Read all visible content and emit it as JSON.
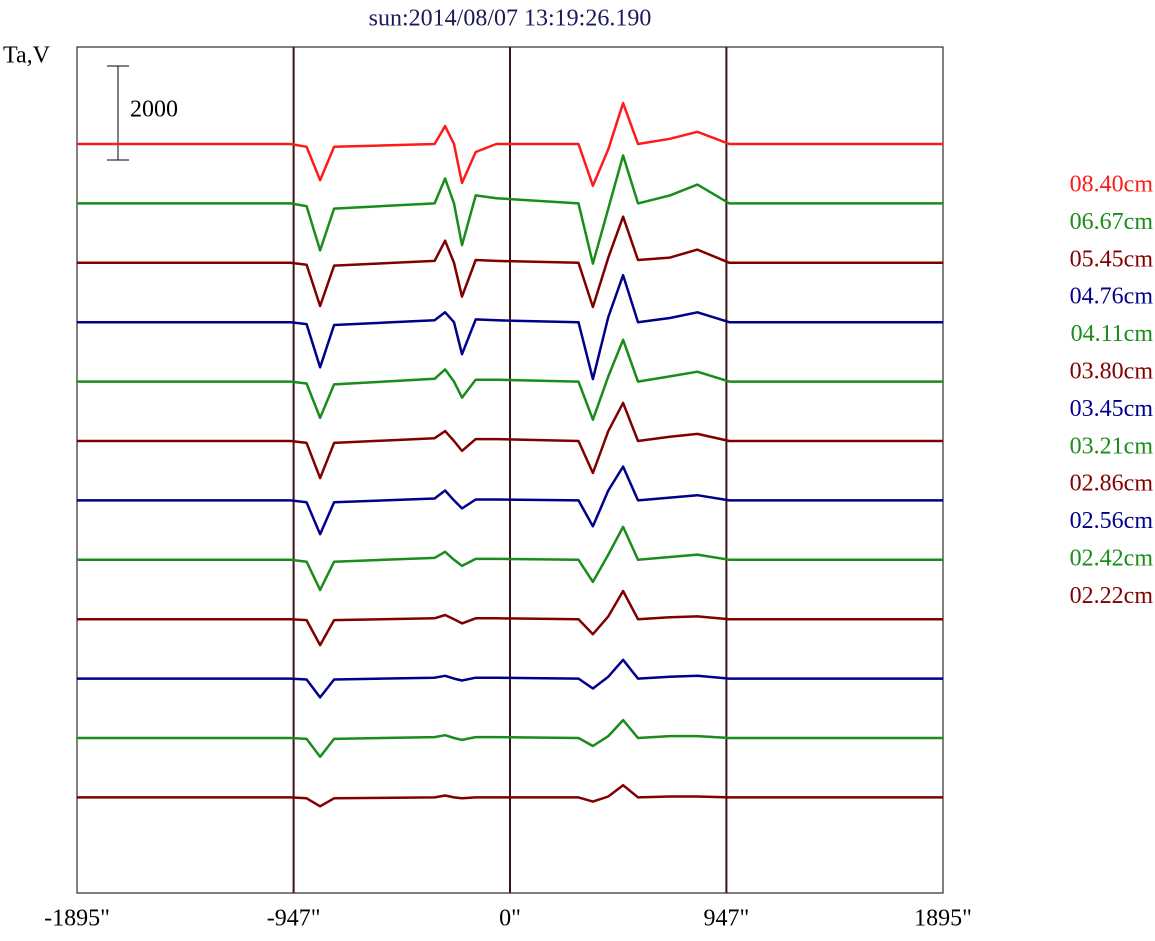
{
  "chart_data": {
    "type": "line",
    "title": "sun:2014/08/07 13:19:26.190",
    "y_label": "Ta,V",
    "scale_bar": 2000,
    "xlim": [
      -1895,
      1895
    ],
    "xticks": [
      {
        "value": -1895,
        "label": "-1895\""
      },
      {
        "value": -947,
        "label": "-947\""
      },
      {
        "value": 0,
        "label": "0\""
      },
      {
        "value": 947,
        "label": "947\""
      },
      {
        "value": 1895,
        "label": "1895\""
      }
    ],
    "grid": true,
    "x": [
      -1895,
      -960,
      -890,
      -831,
      -770,
      -330,
      -284,
      -245,
      -210,
      -150,
      -60,
      300,
      363,
      430,
      495,
      560,
      700,
      820,
      960,
      1895
    ],
    "series": [
      {
        "name": "08.40cm",
        "color": "#ff1a1a",
        "values": [
          0,
          0,
          -60,
          -770,
          -60,
          0,
          380,
          0,
          -830,
          -170,
          0,
          0,
          -890,
          -110,
          870,
          0,
          110,
          260,
          0,
          0
        ]
      },
      {
        "name": "06.67cm",
        "color": "#1a8c1a",
        "values": [
          0,
          0,
          -60,
          -1000,
          -110,
          0,
          530,
          0,
          -890,
          170,
          110,
          0,
          -1280,
          -110,
          1020,
          0,
          170,
          400,
          0,
          0
        ]
      },
      {
        "name": "05.45cm",
        "color": "#800000",
        "values": [
          0,
          0,
          -40,
          -920,
          -60,
          40,
          470,
          0,
          -720,
          60,
          40,
          0,
          -940,
          110,
          980,
          60,
          110,
          280,
          0,
          0
        ]
      },
      {
        "name": "04.76cm",
        "color": "#00008b",
        "values": [
          0,
          0,
          -40,
          -960,
          -60,
          40,
          210,
          0,
          -680,
          60,
          40,
          0,
          -1210,
          110,
          1000,
          0,
          90,
          210,
          0,
          0
        ]
      },
      {
        "name": "04.11cm",
        "color": "#1a8c1a",
        "values": [
          0,
          0,
          -40,
          -770,
          -60,
          60,
          260,
          0,
          -340,
          40,
          40,
          0,
          -810,
          110,
          890,
          0,
          110,
          210,
          0,
          0
        ]
      },
      {
        "name": "03.80cm",
        "color": "#800000",
        "values": [
          0,
          0,
          -40,
          -790,
          -40,
          60,
          210,
          0,
          -210,
          40,
          40,
          0,
          -680,
          210,
          810,
          0,
          90,
          150,
          0,
          0
        ]
      },
      {
        "name": "03.45cm",
        "color": "#00008b",
        "values": [
          0,
          0,
          -40,
          -720,
          -40,
          40,
          210,
          0,
          -170,
          20,
          20,
          0,
          -550,
          210,
          720,
          0,
          60,
          110,
          0,
          0
        ]
      },
      {
        "name": "03.21cm",
        "color": "#1a8c1a",
        "values": [
          0,
          0,
          -40,
          -640,
          -40,
          40,
          170,
          0,
          -130,
          20,
          20,
          0,
          -470,
          110,
          700,
          0,
          60,
          110,
          0,
          0
        ]
      },
      {
        "name": "02.86cm",
        "color": "#800000",
        "values": [
          0,
          0,
          -20,
          -550,
          -20,
          20,
          90,
          0,
          -90,
          20,
          20,
          0,
          -320,
          60,
          600,
          0,
          40,
          60,
          0,
          0
        ]
      },
      {
        "name": "02.56cm",
        "color": "#00008b",
        "values": [
          0,
          0,
          -20,
          -400,
          -20,
          20,
          60,
          0,
          -40,
          20,
          20,
          0,
          -210,
          40,
          400,
          0,
          40,
          60,
          0,
          0
        ]
      },
      {
        "name": "02.42cm",
        "color": "#1a8c1a",
        "values": [
          0,
          0,
          -20,
          -400,
          -20,
          20,
          60,
          0,
          -40,
          20,
          20,
          0,
          -170,
          40,
          380,
          0,
          40,
          40,
          0,
          0
        ]
      },
      {
        "name": "02.22cm",
        "color": "#800000",
        "values": [
          0,
          0,
          -20,
          -190,
          -20,
          0,
          40,
          0,
          -20,
          0,
          0,
          0,
          -90,
          20,
          260,
          0,
          20,
          20,
          0,
          0
        ]
      }
    ]
  }
}
